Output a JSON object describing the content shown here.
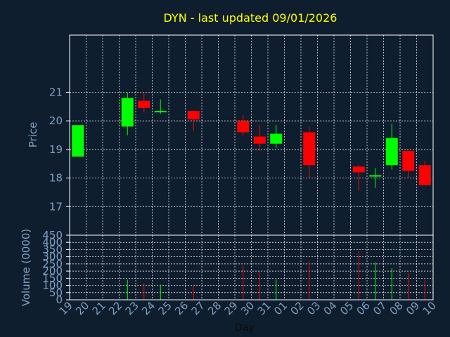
{
  "chart_data": {
    "type": "candlestick",
    "title": "DYN - last updated 09/01/2026",
    "xlabel": "Day",
    "price_panel": {
      "ylabel": "Price",
      "ylim": [
        16,
        23
      ],
      "yticks": [
        17,
        18,
        19,
        20,
        21
      ]
    },
    "volume_panel": {
      "ylabel": "Volume (0000)",
      "ylim": [
        0,
        450
      ],
      "yticks": [
        0,
        50,
        100,
        150,
        200,
        250,
        300,
        350,
        400,
        450
      ]
    },
    "x_ticks": [
      "19",
      "20",
      "21",
      "22",
      "23",
      "24",
      "25",
      "26",
      "27",
      "28",
      "29",
      "30",
      "31",
      "01",
      "02",
      "03",
      "04",
      "05",
      "06",
      "07",
      "08",
      "09",
      "10"
    ],
    "colors": {
      "up": "#00ff00",
      "down": "#ff0000",
      "grid": "#ffffff",
      "background": "#0f1e2e",
      "title": "#ffff00",
      "axis_text": "#7f9fbf"
    },
    "candles": [
      {
        "day": "19",
        "open": 18.75,
        "close": 19.85,
        "high": 19.85,
        "low": 18.75,
        "volume": 0
      },
      {
        "day": "22",
        "open": 19.8,
        "close": 20.8,
        "high": 21.0,
        "low": 19.5,
        "volume": 140
      },
      {
        "day": "23",
        "open": 20.7,
        "close": 20.45,
        "high": 21.0,
        "low": 20.3,
        "volume": 115
      },
      {
        "day": "24",
        "open": 20.3,
        "close": 20.35,
        "high": 20.75,
        "low": 20.25,
        "volume": 105
      },
      {
        "day": "26",
        "open": 20.35,
        "close": 20.05,
        "high": 20.35,
        "low": 19.65,
        "volume": 100
      },
      {
        "day": "29",
        "open": 20.0,
        "close": 19.6,
        "high": 20.2,
        "low": 19.5,
        "volume": 240
      },
      {
        "day": "30",
        "open": 19.45,
        "close": 19.2,
        "high": 19.85,
        "low": 18.95,
        "volume": 200
      },
      {
        "day": "31",
        "open": 19.2,
        "close": 19.55,
        "high": 19.85,
        "low": 19.05,
        "volume": 140
      },
      {
        "day": "02",
        "open": 19.6,
        "close": 18.45,
        "high": 19.8,
        "low": 18.0,
        "volume": 265
      },
      {
        "day": "05",
        "open": 18.4,
        "close": 18.2,
        "high": 18.45,
        "low": 17.55,
        "volume": 335
      },
      {
        "day": "06",
        "open": 18.05,
        "close": 18.1,
        "high": 18.35,
        "low": 17.65,
        "volume": 260
      },
      {
        "day": "07",
        "open": 18.45,
        "close": 19.4,
        "high": 19.9,
        "low": 18.3,
        "volume": 220
      },
      {
        "day": "08",
        "open": 18.95,
        "close": 18.25,
        "high": 18.95,
        "low": 18.0,
        "volume": 185
      },
      {
        "day": "09",
        "open": 18.45,
        "close": 17.75,
        "high": 18.6,
        "low": 17.75,
        "volume": 140
      }
    ]
  }
}
